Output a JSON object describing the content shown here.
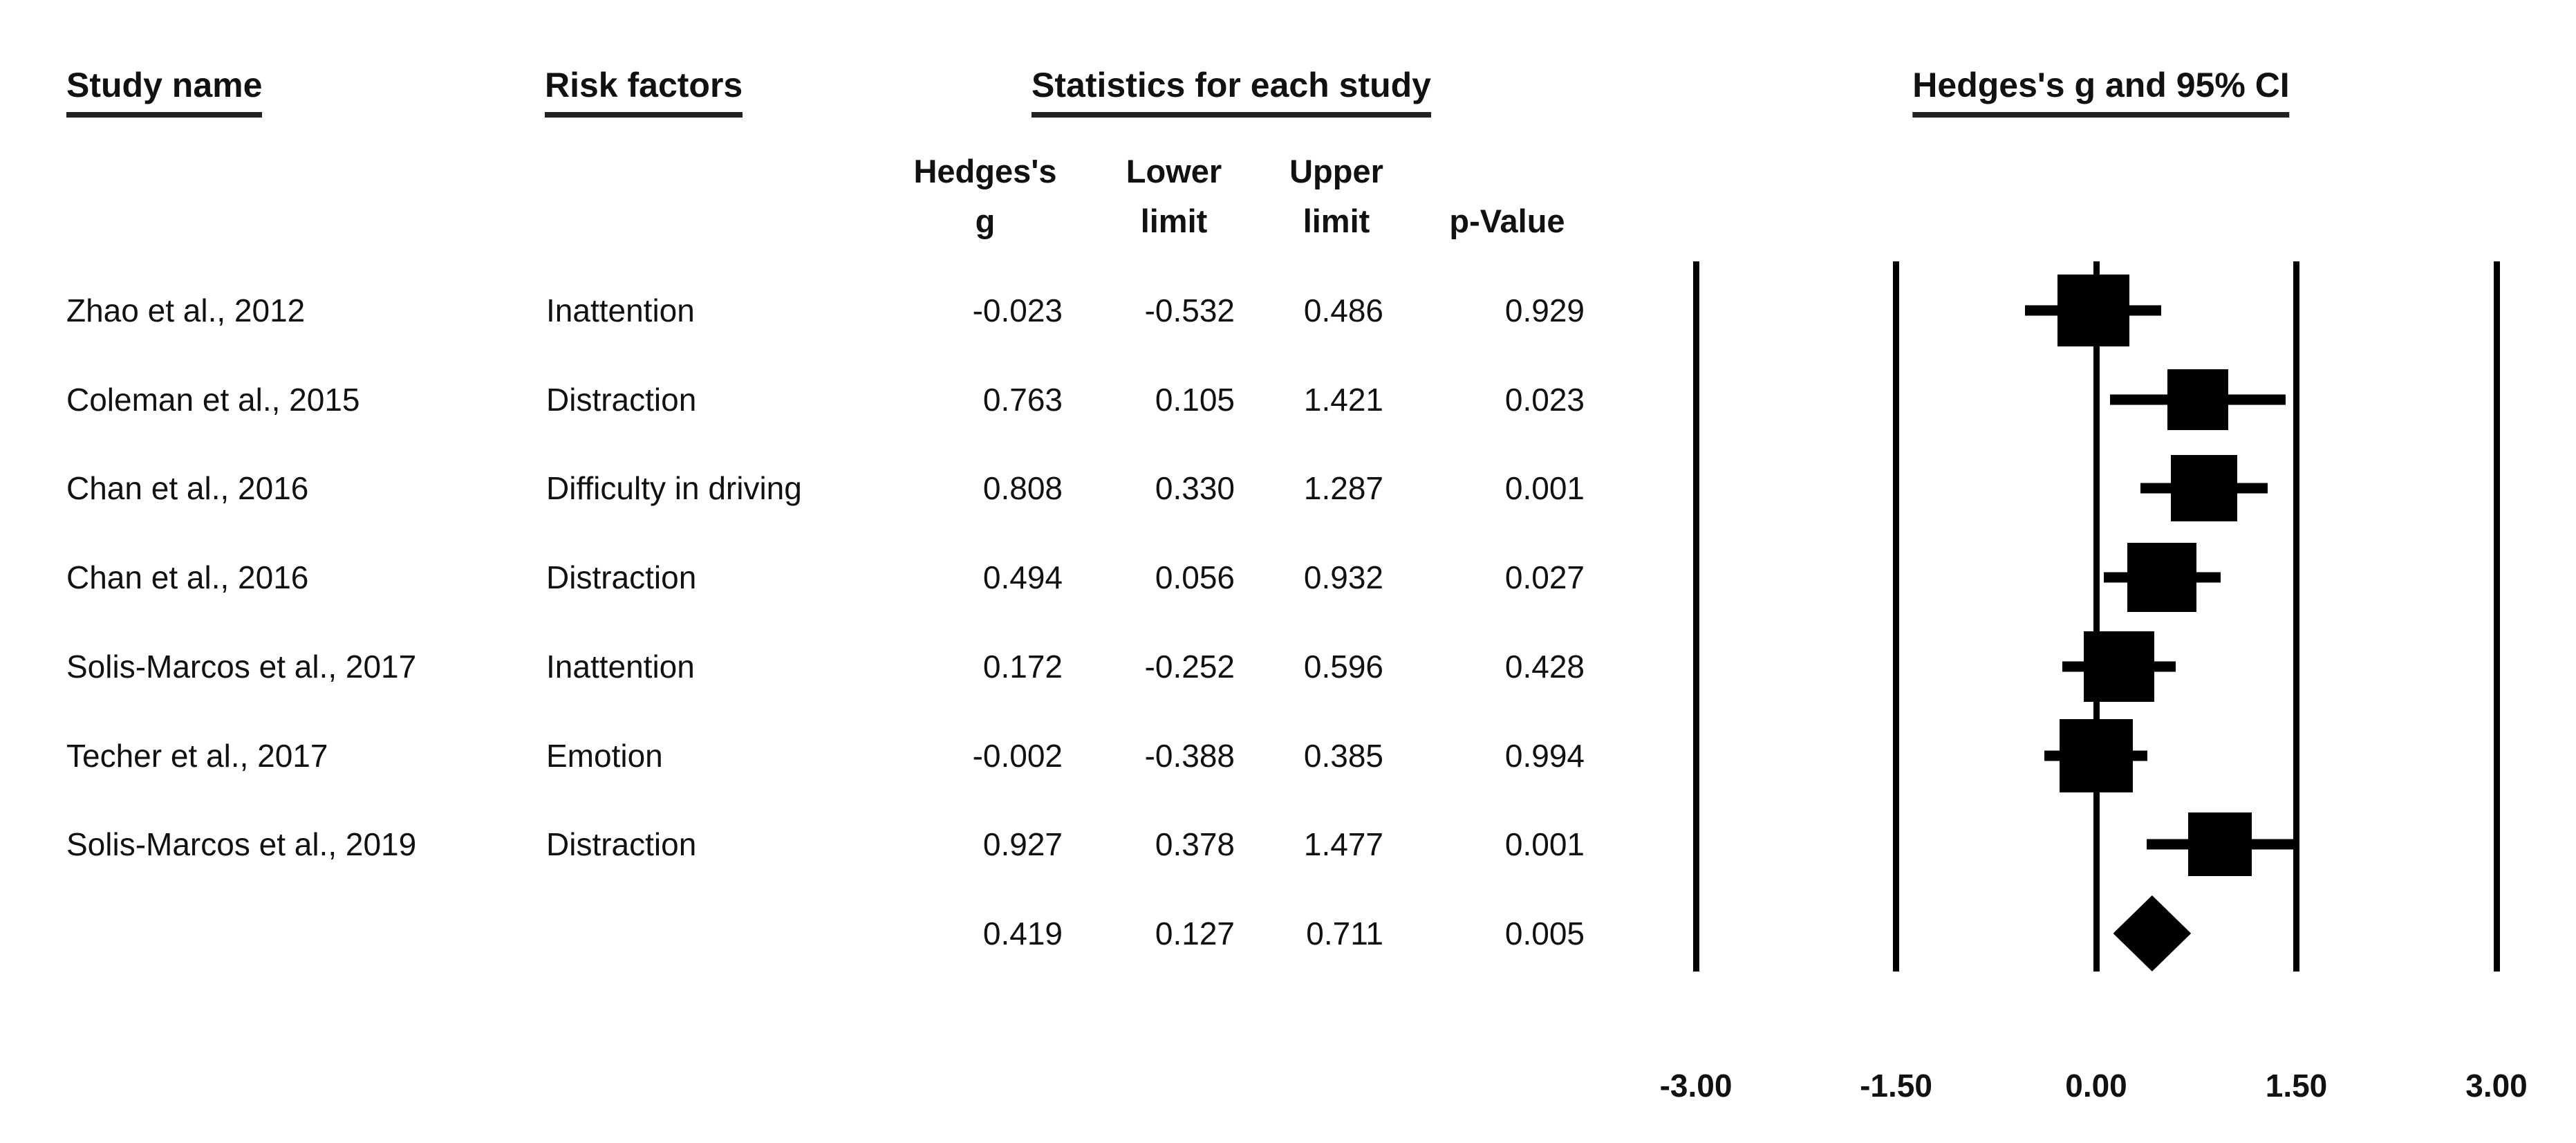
{
  "title_row": {
    "study_name": "Study name",
    "risk_factors": "Risk factors",
    "statistics": "Statistics for each study",
    "forest": "Hedges's g and 95% CI"
  },
  "stat_columns": {
    "hedges": "Hedges's\ng",
    "lower": "Lower\nlimit",
    "upper": "Upper\nlimit",
    "pvalue": "p-Value"
  },
  "colors": {
    "ink": "#111111",
    "marker": "#000000",
    "background": "#ffffff"
  },
  "chart_data": {
    "type": "forest",
    "title": "Hedges's g and 95% CI",
    "effect_measure": "Hedges's g",
    "studies": [
      {
        "study": "Zhao et al., 2012",
        "risk_factor": "Inattention",
        "g": -0.023,
        "lower": -0.532,
        "upper": 0.486,
        "p": 0.929,
        "marker_size_px": 104
      },
      {
        "study": "Coleman et al., 2015",
        "risk_factor": "Distraction",
        "g": 0.763,
        "lower": 0.105,
        "upper": 1.421,
        "p": 0.023,
        "marker_size_px": 88
      },
      {
        "study": "Chan et al., 2016",
        "risk_factor": "Difficulty in driving",
        "g": 0.808,
        "lower": 0.33,
        "upper": 1.287,
        "p": 0.001,
        "marker_size_px": 96
      },
      {
        "study": "Chan et al., 2016",
        "risk_factor": "Distraction",
        "g": 0.494,
        "lower": 0.056,
        "upper": 0.932,
        "p": 0.027,
        "marker_size_px": 100
      },
      {
        "study": "Solis-Marcos et al., 2017",
        "risk_factor": "Inattention",
        "g": 0.172,
        "lower": -0.252,
        "upper": 0.596,
        "p": 0.428,
        "marker_size_px": 102
      },
      {
        "study": "Techer et al., 2017",
        "risk_factor": "Emotion",
        "g": -0.002,
        "lower": -0.388,
        "upper": 0.385,
        "p": 0.994,
        "marker_size_px": 106
      },
      {
        "study": "Solis-Marcos et al., 2019",
        "risk_factor": "Distraction",
        "g": 0.927,
        "lower": 0.378,
        "upper": 1.477,
        "p": 0.001,
        "marker_size_px": 92
      }
    ],
    "overall": {
      "g": 0.419,
      "lower": 0.127,
      "upper": 0.711,
      "p": 0.005
    },
    "axis": {
      "range": [
        -3,
        3
      ],
      "ticks": [
        -3.0,
        -1.5,
        0.0,
        1.5,
        3.0
      ],
      "grid": "vertical-lines-at-ticks",
      "legend_position": "none"
    }
  }
}
